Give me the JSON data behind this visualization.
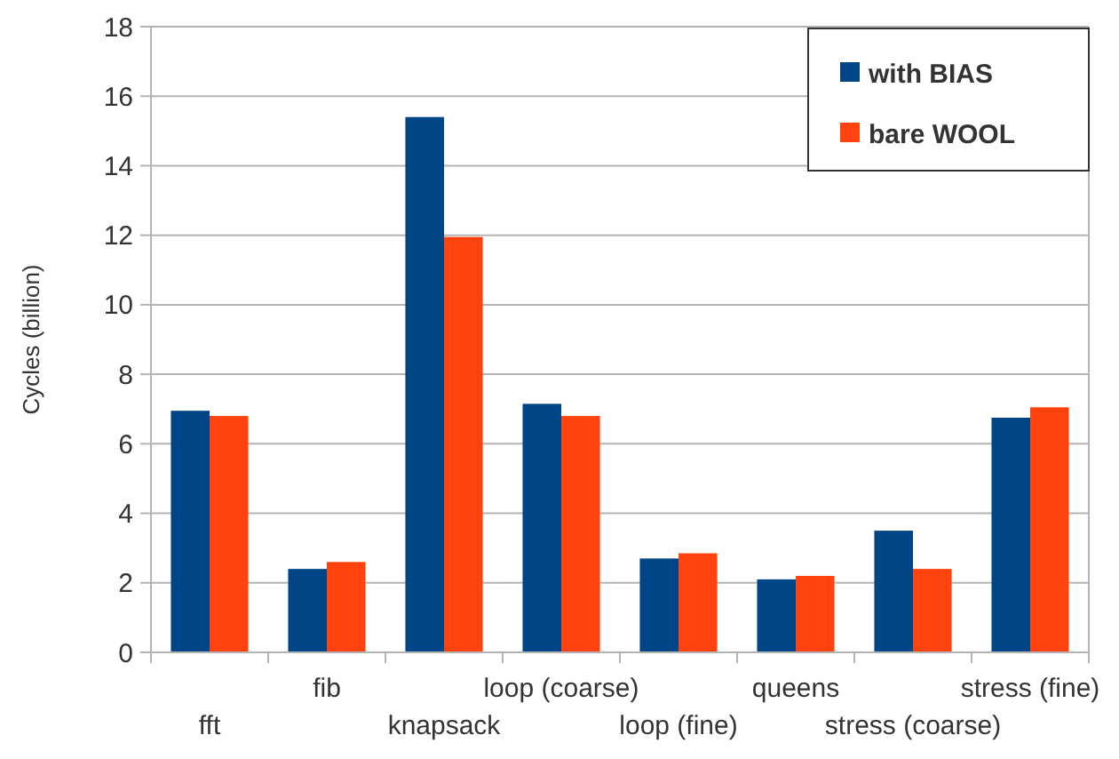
{
  "chart_data": {
    "type": "bar",
    "ylabel": "Cycles (billion)",
    "categories": [
      "fft",
      "fib",
      "knapsack",
      "loop (coarse)",
      "loop (fine)",
      "queens",
      "stress (coarse)",
      "stress (fine)"
    ],
    "series": [
      {
        "name": "with BIAS",
        "color": "#004586",
        "values": [
          6.95,
          2.4,
          15.4,
          7.15,
          2.7,
          2.1,
          3.5,
          6.75
        ]
      },
      {
        "name": "bare WOOL",
        "color": "#ff420e",
        "values": [
          6.8,
          2.6,
          11.95,
          6.8,
          2.85,
          2.2,
          2.4,
          7.05
        ]
      }
    ],
    "ylim": [
      0,
      18
    ],
    "yticks": [
      0,
      2,
      4,
      6,
      8,
      10,
      12,
      14,
      16,
      18
    ],
    "grid": "y",
    "legend": "top right"
  }
}
